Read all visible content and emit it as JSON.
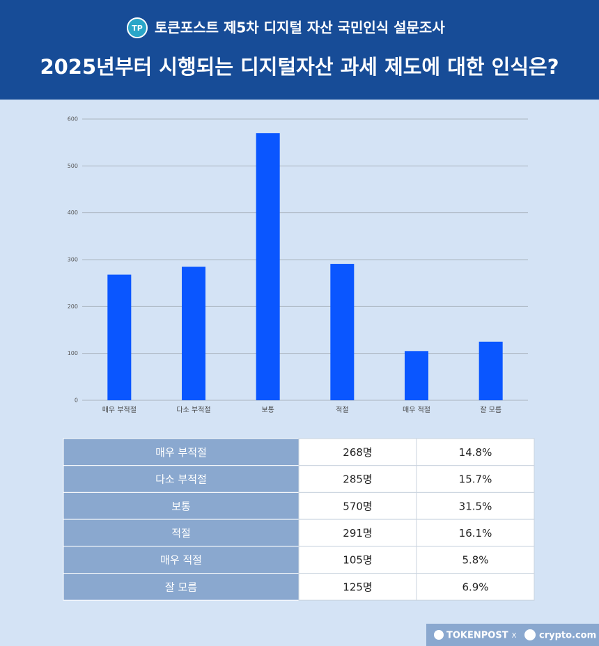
{
  "header": {
    "subtitle": "토큰포스트 제5차 디지털 자산 국민인식 설문조사",
    "title": "2025년부터 시행되는 디지털자산 과세 제도에 대한 인식은?"
  },
  "chart_data": {
    "type": "bar",
    "categories": [
      "매우 부적절",
      "다소 부적절",
      "보통",
      "적절",
      "매우 적절",
      "잘 모름"
    ],
    "values": [
      268,
      285,
      570,
      291,
      105,
      125
    ],
    "color": "#0a56ff",
    "ylim": [
      0,
      600
    ],
    "yticks": [
      0,
      100,
      200,
      300,
      400,
      500,
      600
    ],
    "grid": true
  },
  "table": {
    "rows": [
      [
        "매우 부적절",
        "268명",
        "14.8%"
      ],
      [
        "다소 부적절",
        "285명",
        "15.7%"
      ],
      [
        "보통",
        "570명",
        "31.5%"
      ],
      [
        "적절",
        "291명",
        "16.1%"
      ],
      [
        "매우 적절",
        "105명",
        "5.8%"
      ],
      [
        "잘 모름",
        "125명",
        "6.9%"
      ]
    ]
  },
  "footer": {
    "brand1": "TOKENPOST",
    "separator": "X",
    "brand2": "crypto.com"
  }
}
